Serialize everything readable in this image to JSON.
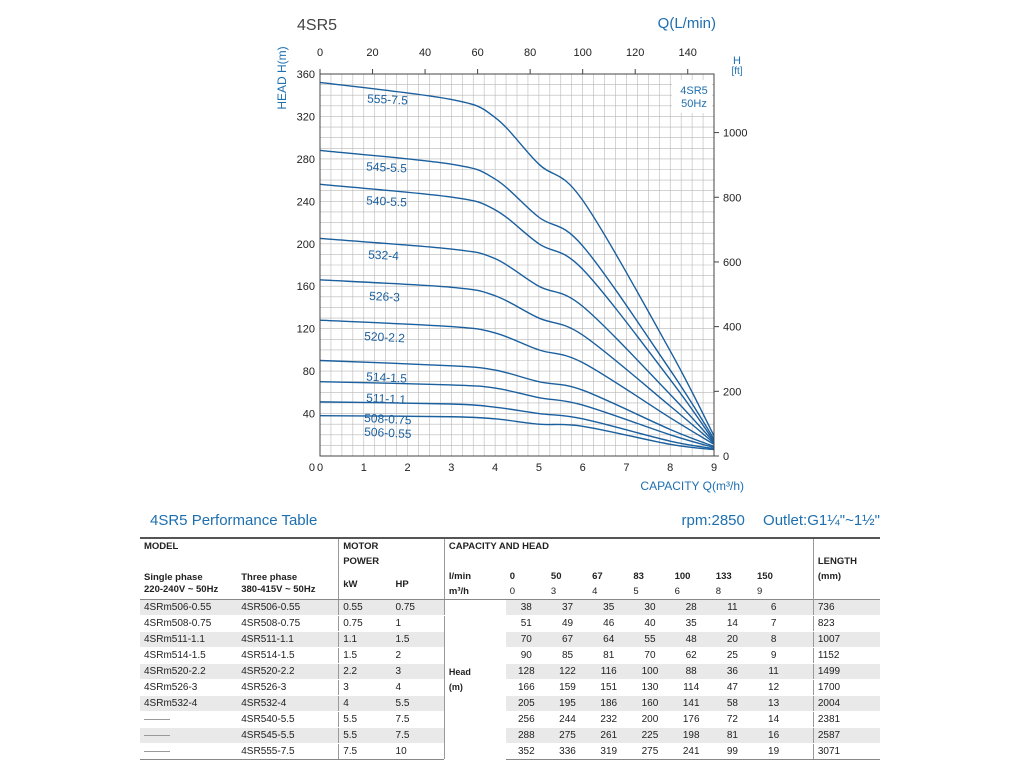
{
  "chart_data": {
    "type": "line",
    "title": "4SR5",
    "top_axis_label": "Q(L/min)",
    "top_axis_ticks": [
      0,
      20,
      40,
      60,
      80,
      100,
      120,
      140
    ],
    "xlabel": "CAPACITY Q(m³/h)",
    "x_ticks": [
      0,
      1,
      2,
      3,
      4,
      5,
      6,
      7,
      8,
      9
    ],
    "xlim": [
      0,
      9
    ],
    "ylabel": "HEAD H(m)",
    "y_ticks": [
      40,
      80,
      120,
      160,
      200,
      240,
      280,
      320,
      360
    ],
    "ylim": [
      0,
      360
    ],
    "right_axis_label": [
      "H",
      "[ft]"
    ],
    "right_axis_ticks": [
      0,
      200,
      400,
      600,
      800,
      1000
    ],
    "legend_box": [
      "4SR5",
      "50Hz"
    ],
    "x": [
      0,
      3,
      4,
      5,
      6,
      8,
      9
    ],
    "series": [
      {
        "name": "555-7.5",
        "values": [
          352,
          336,
          319,
          275,
          241,
          99,
          19
        ]
      },
      {
        "name": "545-5.5",
        "values": [
          288,
          275,
          261,
          225,
          198,
          81,
          16
        ]
      },
      {
        "name": "540-5.5",
        "values": [
          256,
          244,
          232,
          200,
          176,
          72,
          14
        ]
      },
      {
        "name": "532-4",
        "values": [
          205,
          195,
          186,
          160,
          141,
          58,
          13
        ]
      },
      {
        "name": "526-3",
        "values": [
          166,
          159,
          151,
          130,
          114,
          47,
          12
        ]
      },
      {
        "name": "520-2.2",
        "values": [
          128,
          122,
          116,
          100,
          88,
          36,
          11
        ]
      },
      {
        "name": "514-1.5",
        "values": [
          90,
          85,
          81,
          70,
          62,
          25,
          9
        ]
      },
      {
        "name": "511-1.1",
        "values": [
          70,
          67,
          64,
          55,
          48,
          20,
          8
        ]
      },
      {
        "name": "508-0.75",
        "values": [
          51,
          49,
          46,
          40,
          35,
          14,
          7
        ]
      },
      {
        "name": "506-0.55",
        "values": [
          38,
          37,
          35,
          30,
          28,
          11,
          6
        ]
      }
    ]
  },
  "table": {
    "title": "4SR5 Performance Table",
    "rpm": "rpm:2850",
    "outlet": "Outlet:G1¼\"~1½\"",
    "model_header": "MODEL",
    "motor_header": [
      "MOTOR",
      "POWER"
    ],
    "capacity_header": "CAPACITY AND HEAD",
    "length_header": [
      "LENGTH",
      "(mm)"
    ],
    "single_phase": [
      "Single phase",
      "220-240V ~ 50Hz"
    ],
    "three_phase": [
      "Three phase",
      "380-415V ~ 50Hz"
    ],
    "kw_label": "kW",
    "hp_label": "HP",
    "lmin_label": "l/min",
    "m3h_label": "m³/h",
    "head_label": [
      "Head",
      "(m)"
    ],
    "lmin_values": [
      "0",
      "50",
      "67",
      "83",
      "100",
      "133",
      "150"
    ],
    "m3h_values": [
      "0",
      "3",
      "4",
      "5",
      "6",
      "8",
      "9"
    ],
    "rows": [
      {
        "single": "4SRm506-0.55",
        "three": "4SR506-0.55",
        "kw": "0.55",
        "hp": "0.75",
        "heads": [
          "38",
          "37",
          "35",
          "30",
          "28",
          "11",
          "6"
        ],
        "length": "736"
      },
      {
        "single": "4SRm508-0.75",
        "three": "4SR508-0.75",
        "kw": "0.75",
        "hp": "1",
        "heads": [
          "51",
          "49",
          "46",
          "40",
          "35",
          "14",
          "7"
        ],
        "length": "823"
      },
      {
        "single": "4SRm511-1.1",
        "three": "4SR511-1.1",
        "kw": "1.1",
        "hp": "1.5",
        "heads": [
          "70",
          "67",
          "64",
          "55",
          "48",
          "20",
          "8"
        ],
        "length": "1007"
      },
      {
        "single": "4SRm514-1.5",
        "three": "4SR514-1.5",
        "kw": "1.5",
        "hp": "2",
        "heads": [
          "90",
          "85",
          "81",
          "70",
          "62",
          "25",
          "9"
        ],
        "length": "1152"
      },
      {
        "single": "4SRm520-2.2",
        "three": "4SR520-2.2",
        "kw": "2.2",
        "hp": "3",
        "heads": [
          "128",
          "122",
          "116",
          "100",
          "88",
          "36",
          "11"
        ],
        "length": "1499"
      },
      {
        "single": "4SRm526-3",
        "three": "4SR526-3",
        "kw": "3",
        "hp": "4",
        "heads": [
          "166",
          "159",
          "151",
          "130",
          "114",
          "47",
          "12"
        ],
        "length": "1700"
      },
      {
        "single": "4SRm532-4",
        "three": "4SR532-4",
        "kw": "4",
        "hp": "5.5",
        "heads": [
          "205",
          "195",
          "186",
          "160",
          "141",
          "58",
          "13"
        ],
        "length": "2004"
      },
      {
        "single": "",
        "three": "4SR540-5.5",
        "kw": "5.5",
        "hp": "7.5",
        "heads": [
          "256",
          "244",
          "232",
          "200",
          "176",
          "72",
          "14"
        ],
        "length": "2381"
      },
      {
        "single": "",
        "three": "4SR545-5.5",
        "kw": "5.5",
        "hp": "7.5",
        "heads": [
          "288",
          "275",
          "261",
          "225",
          "198",
          "81",
          "16"
        ],
        "length": "2587"
      },
      {
        "single": "",
        "three": "4SR555-7.5",
        "kw": "7.5",
        "hp": "10",
        "heads": [
          "352",
          "336",
          "319",
          "275",
          "241",
          "99",
          "19"
        ],
        "length": "3071"
      }
    ]
  },
  "colors": {
    "curve": "#1a5f9e",
    "accent": "#1d6fb0",
    "grid": "#b8b8b8",
    "band": "#e9e9e9"
  }
}
